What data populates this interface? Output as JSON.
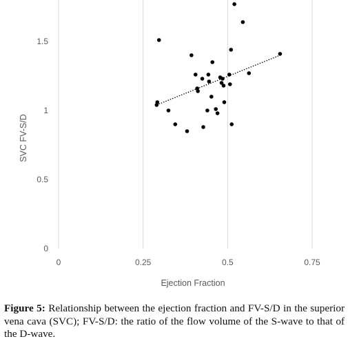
{
  "chart_data": {
    "type": "scatter",
    "title": "",
    "xlabel": "Ejection Fraction",
    "ylabel": "SVC FV-S/D",
    "xlim": [
      0,
      0.75
    ],
    "ylim": [
      0,
      1.8
    ],
    "x_ticks": [
      0,
      0.25,
      0.5,
      0.75
    ],
    "y_ticks": [
      0,
      0.5,
      1,
      1.5
    ],
    "x_tick_labels": [
      "0",
      "0.25",
      "0.5",
      "0.75"
    ],
    "y_tick_labels": [
      "0",
      "0.5",
      "1",
      "1.5"
    ],
    "grid": "vertical",
    "legend": "none",
    "trendline": {
      "type": "linear",
      "x": [
        0.29,
        0.655
      ],
      "y": [
        1.04,
        1.4
      ]
    },
    "points": [
      {
        "x": 0.29,
        "y": 1.04
      },
      {
        "x": 0.292,
        "y": 1.06
      },
      {
        "x": 0.297,
        "y": 1.51
      },
      {
        "x": 0.325,
        "y": 1.0
      },
      {
        "x": 0.345,
        "y": 0.9
      },
      {
        "x": 0.38,
        "y": 0.85
      },
      {
        "x": 0.393,
        "y": 1.4
      },
      {
        "x": 0.405,
        "y": 1.26
      },
      {
        "x": 0.41,
        "y": 1.16
      },
      {
        "x": 0.412,
        "y": 1.14
      },
      {
        "x": 0.425,
        "y": 1.23
      },
      {
        "x": 0.428,
        "y": 0.88
      },
      {
        "x": 0.44,
        "y": 1.0
      },
      {
        "x": 0.443,
        "y": 1.26
      },
      {
        "x": 0.445,
        "y": 1.21
      },
      {
        "x": 0.452,
        "y": 1.1
      },
      {
        "x": 0.455,
        "y": 1.35
      },
      {
        "x": 0.465,
        "y": 1.01
      },
      {
        "x": 0.47,
        "y": 0.98
      },
      {
        "x": 0.478,
        "y": 1.24
      },
      {
        "x": 0.482,
        "y": 1.2
      },
      {
        "x": 0.485,
        "y": 1.23
      },
      {
        "x": 0.488,
        "y": 1.18
      },
      {
        "x": 0.49,
        "y": 1.06
      },
      {
        "x": 0.505,
        "y": 1.26
      },
      {
        "x": 0.507,
        "y": 1.19
      },
      {
        "x": 0.51,
        "y": 1.44
      },
      {
        "x": 0.512,
        "y": 0.9
      },
      {
        "x": 0.52,
        "y": 1.77
      },
      {
        "x": 0.545,
        "y": 1.64
      },
      {
        "x": 0.563,
        "y": 1.27
      },
      {
        "x": 0.655,
        "y": 1.41
      }
    ]
  },
  "caption": {
    "label": "Figure 5:",
    "text": " Relationship between the ejection fraction and FV-S/D in the superior vena cava (SVC); FV-S/D: the ratio of the flow volume of the S-wave to that of the D-wave."
  },
  "colors": {
    "point": "#000000",
    "gridline": "#d9d9d9",
    "axis_text": "#595959",
    "trendline": "#000000"
  }
}
